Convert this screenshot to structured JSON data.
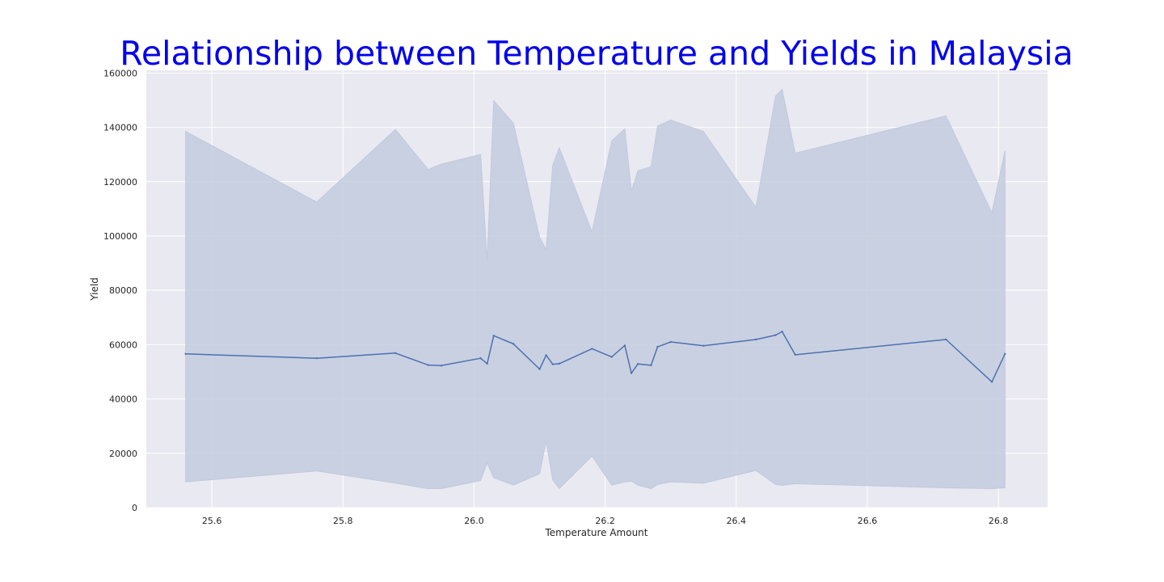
{
  "chart_data": {
    "type": "line",
    "title": "Relationship between Temperature and Yields in Malaysia",
    "xlabel": "Temperature Amount",
    "ylabel": "Yield",
    "xlim": [
      25.5,
      26.875
    ],
    "ylim": [
      0,
      161000
    ],
    "xticks": [
      25.6,
      25.8,
      26.0,
      26.2,
      26.4,
      26.6,
      26.8
    ],
    "xtick_labels": [
      "25.6",
      "25.8",
      "26.0",
      "26.2",
      "26.4",
      "26.6",
      "26.8"
    ],
    "yticks": [
      0,
      20000,
      40000,
      60000,
      80000,
      100000,
      120000,
      140000,
      160000
    ],
    "ytick_labels": [
      "0",
      "20000",
      "40000",
      "60000",
      "80000",
      "100000",
      "120000",
      "140000",
      "160000"
    ],
    "grid": true,
    "background": "#e9e9f1",
    "grid_color": "#ffffff",
    "line_color": "#4c72b0",
    "band_color": "#c1c9dd",
    "title_color": "#0000ee",
    "x": [
      25.56,
      25.76,
      25.88,
      25.93,
      25.95,
      26.01,
      26.02,
      26.03,
      26.06,
      26.1,
      26.11,
      26.12,
      26.13,
      26.18,
      26.21,
      26.23,
      26.24,
      26.25,
      26.27,
      26.28,
      26.3,
      26.35,
      26.43,
      26.46,
      26.47,
      26.49,
      26.72,
      26.79,
      26.81
    ],
    "series": [
      {
        "values": [
          56600,
          55000,
          56900,
          52500,
          52300,
          55000,
          53000,
          63300,
          60300,
          51000,
          56100,
          52800,
          53000,
          58500,
          55500,
          59700,
          49500,
          52900,
          52400,
          59200,
          61000,
          59600,
          61900,
          63500,
          64800,
          56300,
          61900,
          46300,
          56600
        ],
        "lower": [
          9500,
          13500,
          9000,
          7000,
          7000,
          10000,
          16500,
          11000,
          8300,
          12500,
          24500,
          10200,
          7000,
          19000,
          8300,
          9500,
          9800,
          8300,
          7000,
          8500,
          9500,
          9000,
          13700,
          8500,
          8200,
          8800,
          7300,
          7000,
          7300
        ],
        "upper": [
          138500,
          112500,
          139200,
          124500,
          126500,
          130000,
          91000,
          149800,
          141500,
          99500,
          95000,
          126000,
          132500,
          101500,
          135000,
          139500,
          116500,
          124000,
          125500,
          140500,
          142700,
          138500,
          110500,
          151500,
          154000,
          130500,
          144200,
          108500,
          131500
        ]
      }
    ]
  }
}
